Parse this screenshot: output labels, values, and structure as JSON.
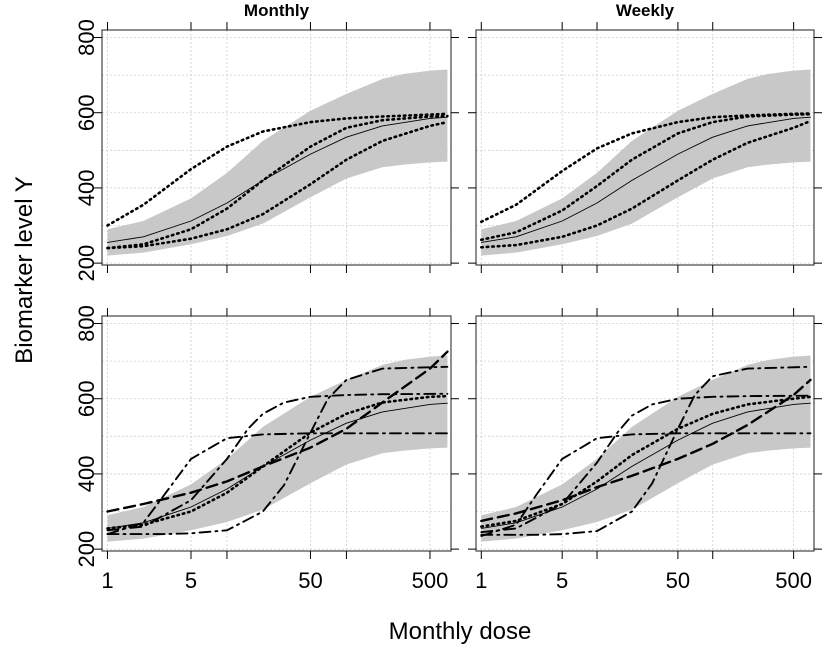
{
  "figure": {
    "ylabel": "Biomarker level Y",
    "xlabel": "Monthly dose"
  },
  "chart_data": [
    {
      "type": "line",
      "title": "Monthly",
      "panel": "top-left",
      "xscale": "log",
      "xlim": [
        0.9,
        750
      ],
      "ylim": [
        195,
        820
      ],
      "x_ticks": [
        1,
        5,
        50,
        500
      ],
      "y_ticks": [
        200,
        400,
        600,
        800
      ],
      "grid": true,
      "band": {
        "x": [
          1,
          2,
          5,
          10,
          20,
          50,
          100,
          200,
          300,
          500,
          700
        ],
        "lower": [
          220,
          228,
          250,
          272,
          305,
          375,
          425,
          455,
          462,
          468,
          470
        ],
        "upper": [
          290,
          312,
          372,
          440,
          525,
          605,
          650,
          690,
          703,
          712,
          715
        ]
      },
      "series": [
        {
          "style": "solid",
          "x": [
            1,
            2,
            5,
            10,
            20,
            50,
            100,
            200,
            500,
            700
          ],
          "y": [
            255,
            270,
            312,
            360,
            420,
            490,
            535,
            565,
            585,
            588
          ]
        },
        {
          "style": "dotted",
          "x": [
            1,
            2,
            5,
            10,
            20,
            50,
            100,
            200,
            500,
            700
          ],
          "y": [
            240,
            250,
            290,
            345,
            420,
            510,
            560,
            580,
            590,
            591
          ]
        },
        {
          "style": "dotted",
          "x": [
            1,
            2,
            5,
            10,
            20,
            50,
            100,
            200,
            500,
            700
          ],
          "y": [
            300,
            355,
            450,
            510,
            550,
            575,
            585,
            590,
            595,
            597
          ]
        },
        {
          "style": "dotted",
          "x": [
            1,
            2,
            5,
            10,
            20,
            50,
            100,
            200,
            500,
            700
          ],
          "y": [
            240,
            245,
            265,
            290,
            330,
            410,
            475,
            525,
            565,
            575
          ]
        }
      ]
    },
    {
      "type": "line",
      "title": "Weekly",
      "panel": "top-right",
      "xscale": "log",
      "xlim": [
        0.9,
        750
      ],
      "ylim": [
        195,
        820
      ],
      "x_ticks": [
        1,
        5,
        50,
        500
      ],
      "y_ticks": [
        200,
        400,
        600,
        800
      ],
      "grid": true,
      "band": {
        "x": [
          1,
          2,
          5,
          10,
          20,
          50,
          100,
          200,
          300,
          500,
          700
        ],
        "lower": [
          220,
          228,
          250,
          272,
          305,
          375,
          425,
          455,
          462,
          468,
          470
        ],
        "upper": [
          290,
          312,
          372,
          440,
          525,
          605,
          650,
          690,
          703,
          712,
          715
        ]
      },
      "series": [
        {
          "style": "solid",
          "x": [
            1,
            2,
            5,
            10,
            20,
            50,
            100,
            200,
            500,
            700
          ],
          "y": [
            255,
            270,
            312,
            360,
            420,
            490,
            535,
            565,
            585,
            588
          ]
        },
        {
          "style": "dotted",
          "x": [
            1,
            2,
            5,
            10,
            20,
            50,
            100,
            200,
            500,
            700
          ],
          "y": [
            262,
            282,
            340,
            405,
            475,
            545,
            575,
            590,
            595,
            596
          ]
        },
        {
          "style": "dotted",
          "x": [
            1,
            2,
            5,
            10,
            20,
            50,
            100,
            200,
            500,
            700
          ],
          "y": [
            310,
            355,
            445,
            505,
            545,
            575,
            588,
            593,
            597,
            598
          ]
        },
        {
          "style": "dotted",
          "x": [
            1,
            2,
            5,
            10,
            20,
            50,
            100,
            200,
            500,
            700
          ],
          "y": [
            242,
            248,
            270,
            300,
            345,
            420,
            475,
            520,
            560,
            578
          ]
        }
      ]
    },
    {
      "type": "line",
      "title": "",
      "panel": "bottom-left",
      "xscale": "log",
      "xlim": [
        0.9,
        750
      ],
      "ylim": [
        195,
        820
      ],
      "x_ticks": [
        1,
        5,
        50,
        500
      ],
      "y_ticks": [
        200,
        400,
        600,
        800
      ],
      "grid": true,
      "band": {
        "x": [
          1,
          2,
          5,
          10,
          20,
          50,
          100,
          200,
          300,
          500,
          700
        ],
        "lower": [
          220,
          228,
          250,
          272,
          305,
          375,
          425,
          455,
          462,
          468,
          470
        ],
        "upper": [
          290,
          312,
          372,
          440,
          525,
          605,
          650,
          690,
          703,
          712,
          715
        ]
      },
      "series": [
        {
          "style": "solid",
          "x": [
            1,
            2,
            5,
            10,
            20,
            50,
            100,
            200,
            500,
            700
          ],
          "y": [
            255,
            270,
            312,
            360,
            420,
            490,
            535,
            565,
            585,
            588
          ]
        },
        {
          "style": "dotted",
          "x": [
            1,
            2,
            5,
            10,
            20,
            50,
            100,
            200,
            500,
            700
          ],
          "y": [
            255,
            265,
            300,
            350,
            420,
            510,
            560,
            590,
            605,
            607
          ]
        },
        {
          "style": "dashed",
          "x": [
            1,
            2,
            5,
            10,
            20,
            50,
            100,
            200,
            500,
            700
          ],
          "y": [
            300,
            320,
            350,
            380,
            420,
            470,
            520,
            590,
            680,
            725
          ]
        },
        {
          "style": "dotdash",
          "x": [
            1,
            2,
            3,
            5,
            10,
            20,
            50,
            100,
            200,
            700
          ],
          "y": [
            240,
            270,
            345,
            440,
            495,
            505,
            508,
            508,
            508,
            508
          ]
        },
        {
          "style": "dotdash",
          "x": [
            1,
            2,
            5,
            10,
            15,
            20,
            30,
            50,
            100,
            200,
            700
          ],
          "y": [
            250,
            260,
            330,
            440,
            520,
            560,
            590,
            605,
            610,
            612,
            613
          ]
        },
        {
          "style": "dotdash",
          "x": [
            1,
            3,
            5,
            10,
            20,
            30,
            50,
            70,
            100,
            200,
            700
          ],
          "y": [
            240,
            240,
            242,
            250,
            300,
            370,
            510,
            600,
            650,
            680,
            685
          ]
        }
      ]
    },
    {
      "type": "line",
      "title": "",
      "panel": "bottom-right",
      "xscale": "log",
      "xlim": [
        0.9,
        750
      ],
      "ylim": [
        195,
        820
      ],
      "x_ticks": [
        1,
        5,
        50,
        500
      ],
      "y_ticks": [
        200,
        400,
        600,
        800
      ],
      "grid": true,
      "band": {
        "x": [
          1,
          2,
          5,
          10,
          20,
          50,
          100,
          200,
          300,
          500,
          700
        ],
        "lower": [
          220,
          228,
          250,
          272,
          305,
          375,
          425,
          455,
          462,
          468,
          470
        ],
        "upper": [
          290,
          312,
          372,
          440,
          525,
          605,
          650,
          690,
          703,
          712,
          715
        ]
      },
      "series": [
        {
          "style": "solid",
          "x": [
            1,
            2,
            5,
            10,
            20,
            50,
            100,
            200,
            500,
            700
          ],
          "y": [
            255,
            270,
            312,
            360,
            420,
            490,
            535,
            565,
            585,
            588
          ]
        },
        {
          "style": "dotted",
          "x": [
            1,
            2,
            5,
            10,
            20,
            50,
            100,
            200,
            500,
            700
          ],
          "y": [
            260,
            275,
            320,
            380,
            450,
            520,
            560,
            585,
            600,
            605
          ]
        },
        {
          "style": "dashed",
          "x": [
            1,
            2,
            5,
            10,
            20,
            50,
            100,
            200,
            500,
            700
          ],
          "y": [
            275,
            295,
            330,
            365,
            395,
            440,
            480,
            530,
            610,
            650
          ]
        },
        {
          "style": "dotdash",
          "x": [
            1,
            2,
            3,
            5,
            10,
            20,
            50,
            100,
            200,
            700
          ],
          "y": [
            235,
            265,
            345,
            440,
            495,
            505,
            508,
            508,
            508,
            508
          ]
        },
        {
          "style": "dotdash",
          "x": [
            1,
            2,
            5,
            10,
            15,
            20,
            30,
            50,
            100,
            200,
            700
          ],
          "y": [
            245,
            255,
            320,
            430,
            510,
            555,
            585,
            600,
            605,
            607,
            608
          ]
        },
        {
          "style": "dotdash",
          "x": [
            1,
            3,
            5,
            10,
            20,
            30,
            50,
            70,
            100,
            200,
            700
          ],
          "y": [
            238,
            238,
            240,
            248,
            300,
            375,
            520,
            610,
            660,
            680,
            685
          ]
        }
      ]
    }
  ]
}
